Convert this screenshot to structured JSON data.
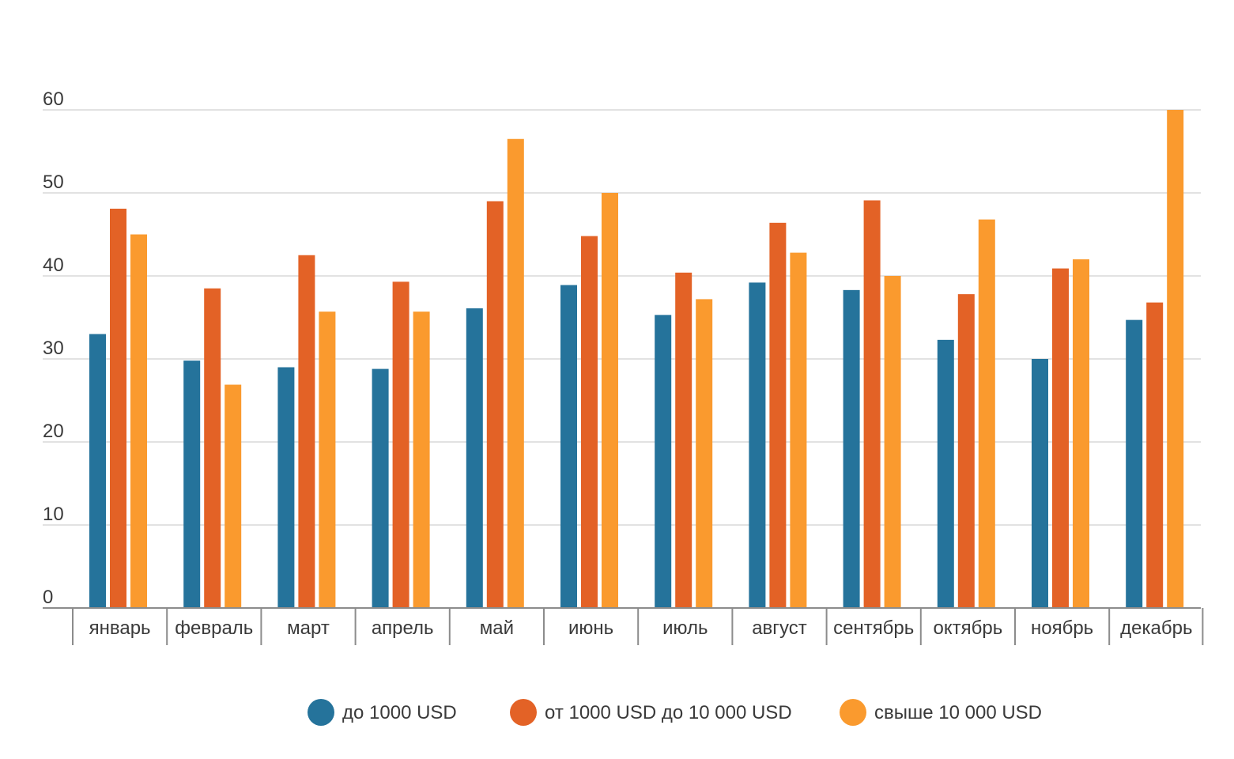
{
  "chart_data": {
    "type": "bar",
    "title": "",
    "xlabel": "",
    "ylabel": "",
    "ylim": [
      0,
      60
    ],
    "yticks": [
      0,
      10,
      20,
      30,
      40,
      50,
      60
    ],
    "grid": true,
    "legend_position": "bottom",
    "categories": [
      "январь",
      "февраль",
      "март",
      "апрель",
      "май",
      "июнь",
      "июль",
      "август",
      "сентябрь",
      "октябрь",
      "ноябрь",
      "декабрь"
    ],
    "series": [
      {
        "name": "до 1000 USD",
        "color": "#25739b",
        "values": [
          33,
          29.8,
          29,
          28.8,
          36.1,
          38.9,
          35.3,
          39.2,
          38.3,
          32.3,
          30,
          34.7
        ]
      },
      {
        "name": "от 1000 USD до 10 000 USD",
        "color": "#e36226",
        "values": [
          48.1,
          38.5,
          42.5,
          39.3,
          49,
          44.8,
          40.4,
          46.4,
          49.1,
          37.8,
          40.9,
          36.8
        ]
      },
      {
        "name": "свыше 10 000 USD",
        "color": "#fa9a2e",
        "values": [
          45,
          26.9,
          35.7,
          35.7,
          56.5,
          50,
          37.2,
          42.8,
          40,
          46.8,
          42,
          60
        ]
      }
    ]
  }
}
